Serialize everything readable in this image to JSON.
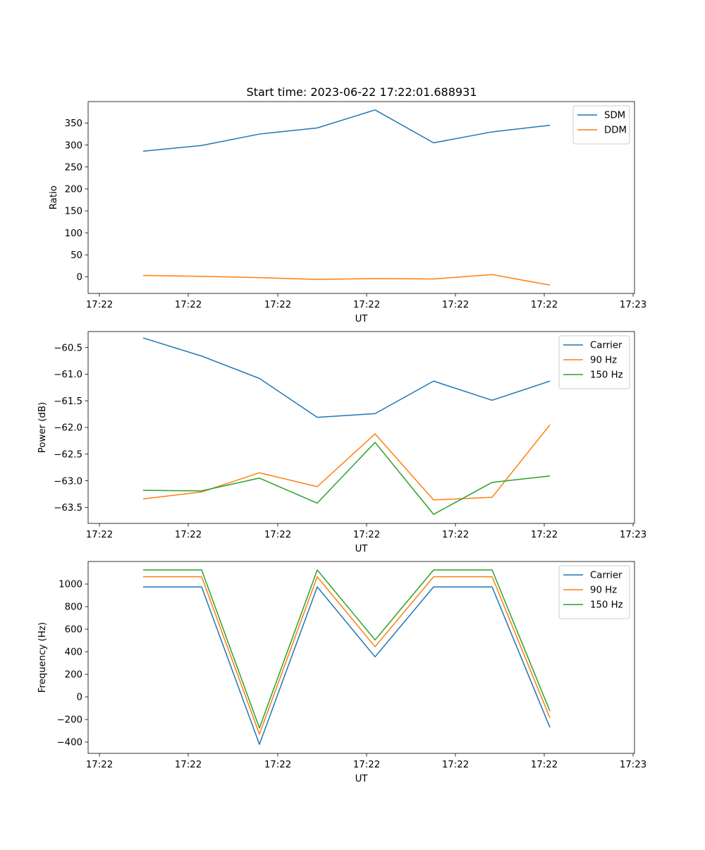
{
  "figure": {
    "title": "Start time: 2023-06-22 17:22:01.688931"
  },
  "colors": {
    "blue": "#1f77b4",
    "orange": "#ff7f0e",
    "green": "#2ca02c"
  },
  "chart_data": [
    {
      "type": "line",
      "title": "Start time: 2023-06-22 17:22:01.688931",
      "xlabel": "UT",
      "ylabel": "Ratio",
      "x_tick_labels": [
        "17:22",
        "17:22",
        "17:22",
        "17:22",
        "17:22",
        "17:22",
        "17:23"
      ],
      "yticks": [
        0,
        50,
        100,
        150,
        200,
        250,
        300,
        350
      ],
      "ylim": [
        -38,
        399
      ],
      "legend_position": "top-right",
      "grid": false,
      "series": [
        {
          "name": "SDM",
          "color": "#1f77b4",
          "values": [
            286,
            299,
            325,
            339,
            380,
            305,
            330,
            345
          ]
        },
        {
          "name": "DDM",
          "color": "#ff7f0e",
          "values": [
            3,
            1,
            -2,
            -6,
            -4,
            -5,
            5,
            -19
          ]
        }
      ]
    },
    {
      "type": "line",
      "title": "",
      "xlabel": "UT",
      "ylabel": "Power (dB)",
      "x_tick_labels": [
        "17:22",
        "17:22",
        "17:22",
        "17:22",
        "17:22",
        "17:22",
        "17:23"
      ],
      "yticks": [
        -63.5,
        -63.0,
        -62.5,
        -62.0,
        -61.5,
        -61.0,
        -60.5
      ],
      "ylim": [
        -63.8,
        -60.2
      ],
      "legend_position": "top-right",
      "grid": false,
      "series": [
        {
          "name": "Carrier",
          "color": "#1f77b4",
          "values": [
            -60.32,
            -60.66,
            -61.08,
            -61.81,
            -61.74,
            -61.13,
            -61.49,
            -61.13
          ]
        },
        {
          "name": "90 Hz",
          "color": "#ff7f0e",
          "values": [
            -63.34,
            -63.21,
            -62.85,
            -63.11,
            -62.12,
            -63.36,
            -63.31,
            -61.95
          ]
        },
        {
          "name": "150 Hz",
          "color": "#2ca02c",
          "values": [
            -63.18,
            -63.19,
            -62.95,
            -63.42,
            -62.28,
            -63.63,
            -63.03,
            -62.91
          ]
        }
      ]
    },
    {
      "type": "line",
      "title": "",
      "xlabel": "UT",
      "ylabel": "Frequency (Hz)",
      "x_tick_labels": [
        "17:22",
        "17:22",
        "17:22",
        "17:22",
        "17:22",
        "17:22",
        "17:23"
      ],
      "yticks": [
        -400,
        -200,
        0,
        200,
        400,
        600,
        800,
        1000
      ],
      "ylim": [
        -500,
        1200
      ],
      "legend_position": "top-right",
      "grid": false,
      "series": [
        {
          "name": "Carrier",
          "color": "#1f77b4",
          "values": [
            975,
            975,
            -420,
            975,
            355,
            975,
            975,
            -270
          ]
        },
        {
          "name": "90 Hz",
          "color": "#ff7f0e",
          "values": [
            1065,
            1065,
            -330,
            1065,
            445,
            1065,
            1065,
            -185
          ]
        },
        {
          "name": "150 Hz",
          "color": "#2ca02c",
          "values": [
            1125,
            1125,
            -275,
            1125,
            505,
            1125,
            1125,
            -125
          ]
        }
      ]
    }
  ]
}
